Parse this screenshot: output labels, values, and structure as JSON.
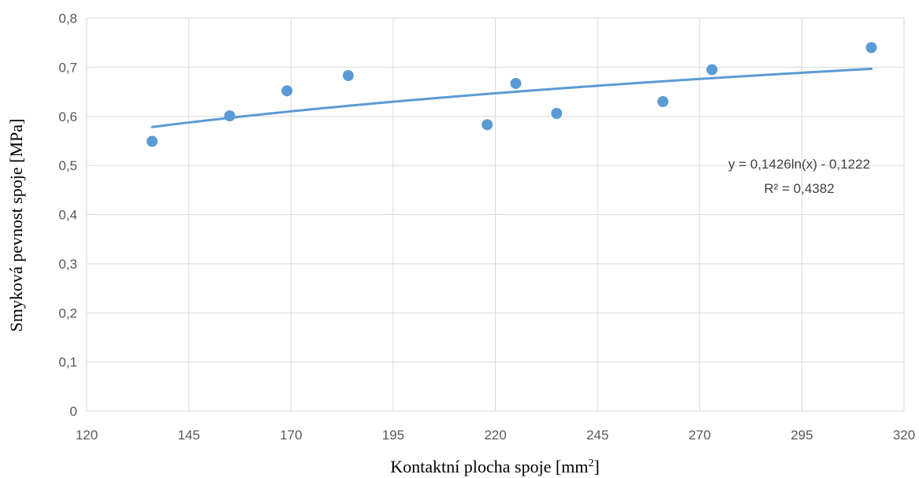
{
  "chart_data": {
    "type": "scatter",
    "xlabel": "Kontaktní plocha spoje [mm",
    "xlabel_sup": "2",
    "xlabel_end": "]",
    "ylabel": "Smyková pevnost spoje [MPa]",
    "xlim": [
      120,
      320
    ],
    "ylim": [
      0,
      0.8
    ],
    "x_ticks": [
      120,
      145,
      170,
      195,
      220,
      245,
      270,
      295,
      320
    ],
    "x_tick_labels": [
      "120",
      "145",
      "170",
      "195",
      "220",
      "245",
      "270",
      "295",
      "320"
    ],
    "y_ticks": [
      0,
      0.1,
      0.2,
      0.3,
      0.4,
      0.5,
      0.6,
      0.7,
      0.8
    ],
    "y_tick_labels": [
      "0",
      "0,1",
      "0,2",
      "0,3",
      "0,4",
      "0,5",
      "0,6",
      "0,7",
      "0,8"
    ],
    "grid": true,
    "colors": {
      "points": "#5b9bd5",
      "trendline": "#5b9bd5",
      "grid": "#d9d9d9"
    },
    "points": [
      {
        "x": 136,
        "y": 0.549
      },
      {
        "x": 155,
        "y": 0.601
      },
      {
        "x": 169,
        "y": 0.652
      },
      {
        "x": 184,
        "y": 0.683
      },
      {
        "x": 218,
        "y": 0.583
      },
      {
        "x": 225,
        "y": 0.667
      },
      {
        "x": 235,
        "y": 0.606
      },
      {
        "x": 261,
        "y": 0.63
      },
      {
        "x": 273,
        "y": 0.695
      },
      {
        "x": 312,
        "y": 0.74
      }
    ],
    "trendline": {
      "type": "logarithmic",
      "a": 0.1426,
      "b": -0.1222,
      "x_range": [
        136,
        312
      ],
      "equation_text": "y = 0,1426ln(x) - 0,1222",
      "r2_text": "R² = 0,4382"
    }
  }
}
